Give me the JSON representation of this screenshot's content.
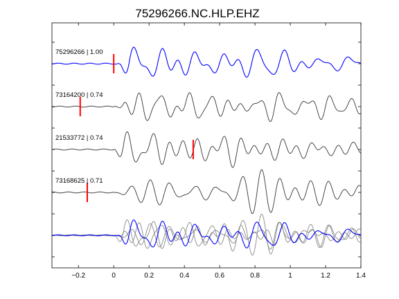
{
  "chart_data": {
    "type": "line",
    "title": "75296266.NC.HLP.EHZ",
    "xlabel": "",
    "ylabel": "",
    "xlim": [
      -0.35,
      1.4
    ],
    "x_ticks": [
      -0.2,
      0,
      0.2,
      0.4,
      0.6,
      0.8,
      1,
      1.2,
      1.4
    ],
    "x_tick_labels": [
      "−0.2",
      "0",
      "0.2",
      "0.4",
      "0.6",
      "0.8",
      "1",
      "1.2",
      "1.4"
    ],
    "grid": false,
    "colors": {
      "master": "#0000ff",
      "correlated": "#333333",
      "stack_overlay": "#888888",
      "pick": "#ff0000",
      "axes": "#000000"
    },
    "series": [
      {
        "label": "75296266 | 1.00",
        "event_id": "75296266",
        "correlation": 1.0,
        "pick_time": 0.0,
        "color": "#0000ff"
      },
      {
        "label": "73164200 | 0.74",
        "event_id": "73164200",
        "correlation": 0.74,
        "pick_time": -0.19,
        "color": "#333333"
      },
      {
        "label": "21533772 | 0.74",
        "event_id": "21533772",
        "correlation": 0.74,
        "pick_time": 0.45,
        "color": "#333333"
      },
      {
        "label": "73168625 | 0.71",
        "event_id": "73168625",
        "correlation": 0.71,
        "pick_time": -0.15,
        "color": "#333333"
      }
    ]
  }
}
